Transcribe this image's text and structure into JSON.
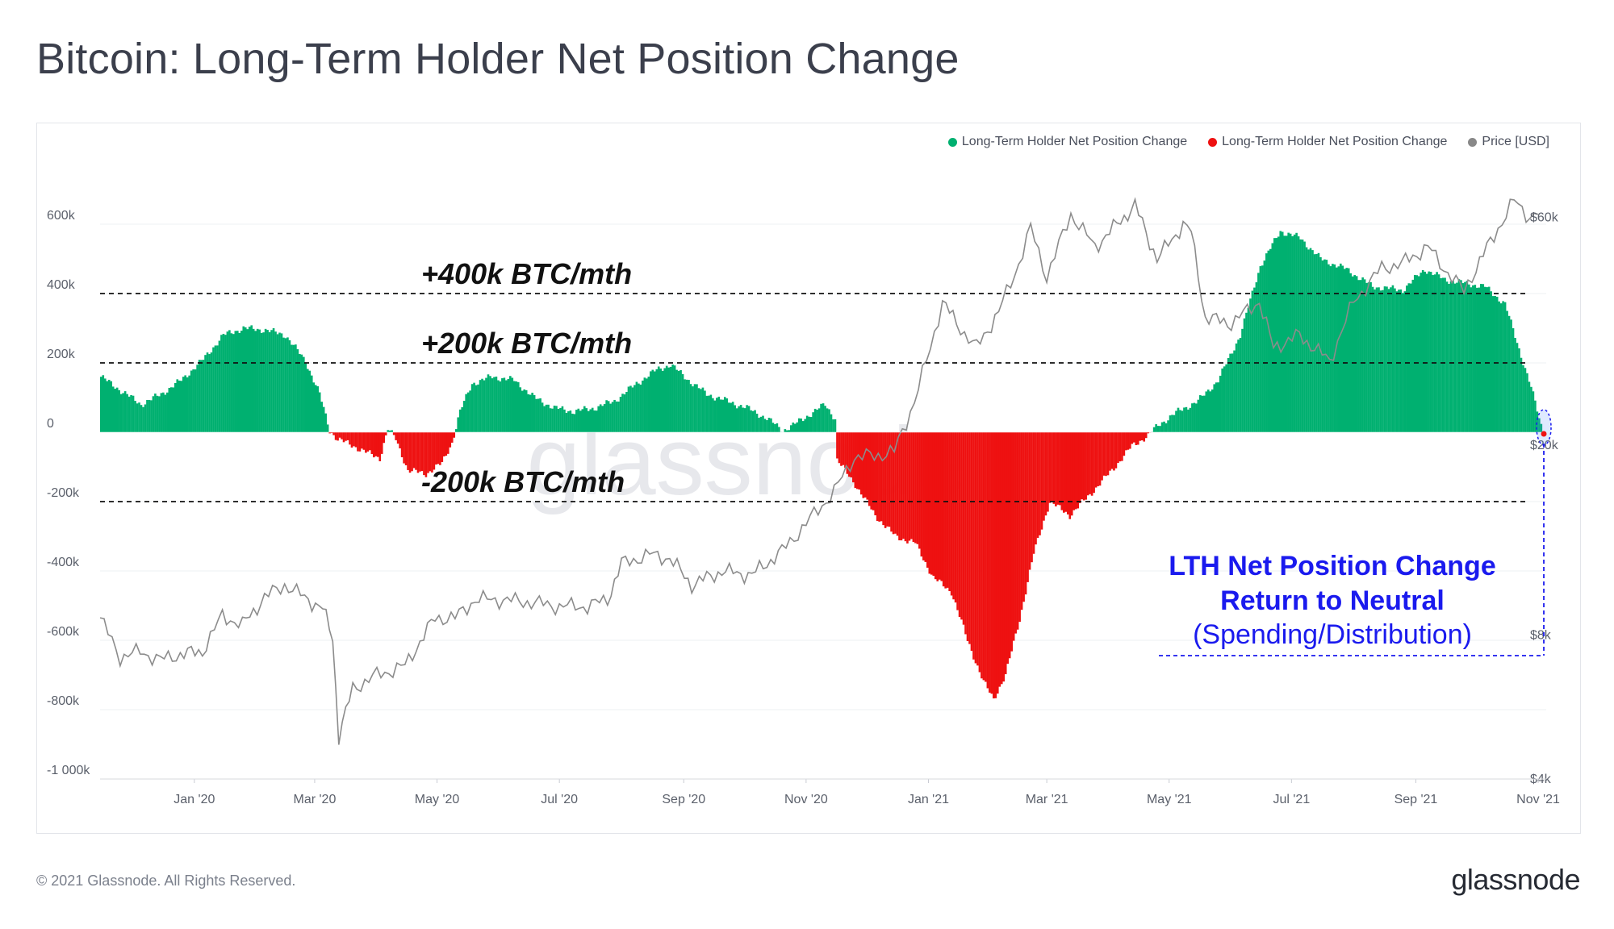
{
  "page": {
    "title": "Bitcoin: Long-Term Holder Net Position Change",
    "copyright": "© 2021 Glassnode. All Rights Reserved.",
    "brand": "glassnode",
    "watermark": "glassnode"
  },
  "legend": [
    {
      "label": "Long-Term Holder Net Position Change",
      "color": "#00b070"
    },
    {
      "label": "Long-Term Holder Net Position Change",
      "color": "#ee1111"
    },
    {
      "label": "Price [USD]",
      "color": "#888888"
    }
  ],
  "chart_data": {
    "type": "area",
    "title": "Bitcoin: Long-Term Holder Net Position Change",
    "colors": {
      "positive": "#00b070",
      "negative": "#ee1111",
      "price": "#8c8c8c",
      "annotation": "#1a1aee"
    },
    "x_range": [
      "2019-11-15",
      "2021-11-05"
    ],
    "x_tick_labels": [
      {
        "date": "2020-01-01",
        "label": "Jan '20"
      },
      {
        "date": "2020-03-01",
        "label": "Mar '20"
      },
      {
        "date": "2020-05-01",
        "label": "May '20"
      },
      {
        "date": "2020-07-01",
        "label": "Jul '20"
      },
      {
        "date": "2020-09-01",
        "label": "Sep '20"
      },
      {
        "date": "2020-11-01",
        "label": "Nov '20"
      },
      {
        "date": "2021-01-01",
        "label": "Jan '21"
      },
      {
        "date": "2021-03-01",
        "label": "Mar '21"
      },
      {
        "date": "2021-05-01",
        "label": "May '21"
      },
      {
        "date": "2021-07-01",
        "label": "Jul '21"
      },
      {
        "date": "2021-09-01",
        "label": "Sep '21"
      },
      {
        "date": "2021-11-01",
        "label": "Nov '21"
      }
    ],
    "y_left": {
      "range": [
        -1000000,
        700000
      ],
      "ticks": [
        {
          "value": 600000,
          "label": "600k"
        },
        {
          "value": 400000,
          "label": "400k"
        },
        {
          "value": 200000,
          "label": "200k"
        },
        {
          "value": 0,
          "label": "0"
        },
        {
          "value": -200000,
          "label": "-200k"
        },
        {
          "value": -400000,
          "label": "-400k"
        },
        {
          "value": -600000,
          "label": "-600k"
        },
        {
          "value": -800000,
          "label": "-800k"
        },
        {
          "value": -1000000,
          "label": "-1 000k"
        }
      ]
    },
    "y_right": {
      "scale": "log",
      "ticks": [
        {
          "value": 60000,
          "label": "$60k"
        },
        {
          "value": 20000,
          "label": "$20k"
        },
        {
          "value": 8000,
          "label": "$8k"
        },
        {
          "value": 4000,
          "label": "$4k"
        }
      ]
    },
    "net_position_change_btc": [
      [
        "2019-11-15",
        160000
      ],
      [
        "2019-11-25",
        120000
      ],
      [
        "2019-12-05",
        80000
      ],
      [
        "2019-12-15",
        110000
      ],
      [
        "2019-12-25",
        150000
      ],
      [
        "2020-01-05",
        210000
      ],
      [
        "2020-01-15",
        280000
      ],
      [
        "2020-01-25",
        300000
      ],
      [
        "2020-02-05",
        295000
      ],
      [
        "2020-02-15",
        280000
      ],
      [
        "2020-02-25",
        205000
      ],
      [
        "2020-03-03",
        110000
      ],
      [
        "2020-03-08",
        5000
      ],
      [
        "2020-03-12",
        -20000
      ],
      [
        "2020-03-20",
        -40000
      ],
      [
        "2020-03-27",
        -60000
      ],
      [
        "2020-04-02",
        -75000
      ],
      [
        "2020-04-06",
        10000
      ],
      [
        "2020-04-10",
        -20000
      ],
      [
        "2020-04-16",
        -110000
      ],
      [
        "2020-04-25",
        -120000
      ],
      [
        "2020-05-03",
        -90000
      ],
      [
        "2020-05-08",
        -30000
      ],
      [
        "2020-05-12",
        60000
      ],
      [
        "2020-05-18",
        140000
      ],
      [
        "2020-05-28",
        160000
      ],
      [
        "2020-06-08",
        150000
      ],
      [
        "2020-06-18",
        100000
      ],
      [
        "2020-06-28",
        70000
      ],
      [
        "2020-07-08",
        60000
      ],
      [
        "2020-07-18",
        70000
      ],
      [
        "2020-07-28",
        90000
      ],
      [
        "2020-08-08",
        140000
      ],
      [
        "2020-08-18",
        180000
      ],
      [
        "2020-08-25",
        195000
      ],
      [
        "2020-09-03",
        150000
      ],
      [
        "2020-09-12",
        110000
      ],
      [
        "2020-09-22",
        90000
      ],
      [
        "2020-10-02",
        70000
      ],
      [
        "2020-10-12",
        40000
      ],
      [
        "2020-10-20",
        5000
      ],
      [
        "2020-10-25",
        20000
      ],
      [
        "2020-11-02",
        50000
      ],
      [
        "2020-11-10",
        80000
      ],
      [
        "2020-11-15",
        40000
      ],
      [
        "2020-11-16",
        -80000
      ],
      [
        "2020-11-25",
        -150000
      ],
      [
        "2020-12-05",
        -240000
      ],
      [
        "2020-12-15",
        -300000
      ],
      [
        "2020-12-25",
        -320000
      ],
      [
        "2021-01-03",
        -420000
      ],
      [
        "2021-01-12",
        -460000
      ],
      [
        "2021-01-20",
        -600000
      ],
      [
        "2021-01-28",
        -720000
      ],
      [
        "2021-02-02",
        -770000
      ],
      [
        "2021-02-08",
        -700000
      ],
      [
        "2021-02-15",
        -540000
      ],
      [
        "2021-02-22",
        -350000
      ],
      [
        "2021-03-02",
        -200000
      ],
      [
        "2021-03-12",
        -240000
      ],
      [
        "2021-03-22",
        -180000
      ],
      [
        "2021-04-02",
        -110000
      ],
      [
        "2021-04-12",
        -40000
      ],
      [
        "2021-04-20",
        -10000
      ],
      [
        "2021-04-25",
        20000
      ],
      [
        "2021-05-05",
        60000
      ],
      [
        "2021-05-15",
        90000
      ],
      [
        "2021-05-25",
        150000
      ],
      [
        "2021-06-05",
        280000
      ],
      [
        "2021-06-15",
        480000
      ],
      [
        "2021-06-25",
        580000
      ],
      [
        "2021-07-05",
        560000
      ],
      [
        "2021-07-15",
        500000
      ],
      [
        "2021-07-28",
        470000
      ],
      [
        "2021-08-10",
        420000
      ],
      [
        "2021-08-25",
        410000
      ],
      [
        "2021-09-05",
        470000
      ],
      [
        "2021-09-15",
        440000
      ],
      [
        "2021-09-25",
        430000
      ],
      [
        "2021-10-05",
        420000
      ],
      [
        "2021-10-15",
        370000
      ],
      [
        "2021-10-22",
        240000
      ],
      [
        "2021-10-28",
        130000
      ],
      [
        "2021-11-01",
        40000
      ],
      [
        "2021-11-03",
        0
      ]
    ],
    "price_usd": [
      [
        "2019-11-15",
        8700
      ],
      [
        "2019-11-25",
        7200
      ],
      [
        "2019-12-05",
        7400
      ],
      [
        "2019-12-15",
        7100
      ],
      [
        "2019-12-25",
        7300
      ],
      [
        "2020-01-05",
        7400
      ],
      [
        "2020-01-15",
        8800
      ],
      [
        "2020-01-25",
        8400
      ],
      [
        "2020-02-05",
        9600
      ],
      [
        "2020-02-15",
        10200
      ],
      [
        "2020-02-25",
        9600
      ],
      [
        "2020-03-05",
        9100
      ],
      [
        "2020-03-10",
        7900
      ],
      [
        "2020-03-13",
        4900
      ],
      [
        "2020-03-20",
        6200
      ],
      [
        "2020-04-01",
        6600
      ],
      [
        "2020-04-15",
        6900
      ],
      [
        "2020-04-30",
        8700
      ],
      [
        "2020-05-10",
        8700
      ],
      [
        "2020-05-20",
        9500
      ],
      [
        "2020-06-01",
        9500
      ],
      [
        "2020-06-15",
        9400
      ],
      [
        "2020-07-01",
        9200
      ],
      [
        "2020-07-15",
        9200
      ],
      [
        "2020-07-25",
        9500
      ],
      [
        "2020-08-01",
        11300
      ],
      [
        "2020-08-15",
        11800
      ],
      [
        "2020-08-25",
        11600
      ],
      [
        "2020-09-05",
        10200
      ],
      [
        "2020-09-20",
        10900
      ],
      [
        "2020-10-05",
        10700
      ],
      [
        "2020-10-20",
        12000
      ],
      [
        "2020-11-01",
        13700
      ],
      [
        "2020-11-15",
        16000
      ],
      [
        "2020-11-25",
        18900
      ],
      [
        "2020-12-05",
        19000
      ],
      [
        "2020-12-15",
        19400
      ],
      [
        "2020-12-25",
        24700
      ],
      [
        "2021-01-02",
        32000
      ],
      [
        "2021-01-08",
        40000
      ],
      [
        "2021-01-15",
        36000
      ],
      [
        "2021-01-25",
        32000
      ],
      [
        "2021-02-05",
        38000
      ],
      [
        "2021-02-15",
        48000
      ],
      [
        "2021-02-21",
        57000
      ],
      [
        "2021-03-01",
        45000
      ],
      [
        "2021-03-13",
        61000
      ],
      [
        "2021-03-25",
        52000
      ],
      [
        "2021-04-05",
        58000
      ],
      [
        "2021-04-14",
        63500
      ],
      [
        "2021-04-25",
        49000
      ],
      [
        "2021-05-08",
        58000
      ],
      [
        "2021-05-12",
        56000
      ],
      [
        "2021-05-19",
        37000
      ],
      [
        "2021-06-01",
        36000
      ],
      [
        "2021-06-15",
        40000
      ],
      [
        "2021-06-22",
        32000
      ],
      [
        "2021-07-05",
        34000
      ],
      [
        "2021-07-20",
        30000
      ],
      [
        "2021-08-01",
        40000
      ],
      [
        "2021-08-15",
        47000
      ],
      [
        "2021-08-25",
        48000
      ],
      [
        "2021-09-07",
        52000
      ],
      [
        "2021-09-15",
        47000
      ],
      [
        "2021-09-25",
        42000
      ],
      [
        "2021-10-01",
        47000
      ],
      [
        "2021-10-10",
        55000
      ],
      [
        "2021-10-20",
        65000
      ],
      [
        "2021-10-28",
        60000
      ],
      [
        "2021-11-03",
        62000
      ]
    ],
    "annotations": {
      "threshold_lines": [
        {
          "value": 400000,
          "label": "+400k BTC/mth"
        },
        {
          "value": 200000,
          "label": "+200k BTC/mth"
        },
        {
          "value": -200000,
          "label": "-200k BTC/mth"
        }
      ],
      "callout": {
        "line1": "LTH Net Position Change",
        "line2": "Return to Neutral",
        "line3": "(Spending/Distribution)"
      }
    }
  }
}
